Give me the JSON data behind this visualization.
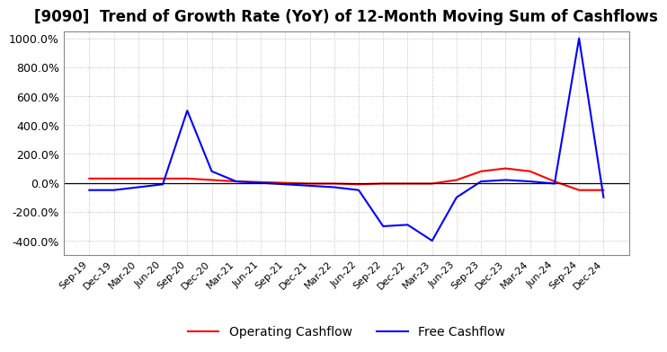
{
  "title": "[9090]  Trend of Growth Rate (YoY) of 12-Month Moving Sum of Cashflows",
  "title_fontsize": 12,
  "ylim": [
    -500,
    1050
  ],
  "yticks": [
    -400,
    -200,
    0,
    200,
    400,
    600,
    800,
    1000
  ],
  "yticklabels": [
    "-400.0%",
    "-200.0%",
    "0.0%",
    "200.0%",
    "400.0%",
    "600.0%",
    "800.0%",
    "1000.0%"
  ],
  "background_color": "#ffffff",
  "grid_color": "#b0b0b0",
  "legend_labels": [
    "Operating Cashflow",
    "Free Cashflow"
  ],
  "legend_colors": [
    "red",
    "blue"
  ],
  "x_labels": [
    "Sep-19",
    "Dec-19",
    "Mar-20",
    "Jun-20",
    "Sep-20",
    "Dec-20",
    "Mar-21",
    "Jun-21",
    "Sep-21",
    "Dec-21",
    "Mar-22",
    "Jun-22",
    "Sep-22",
    "Dec-22",
    "Mar-23",
    "Jun-23",
    "Sep-23",
    "Dec-23",
    "Mar-24",
    "Jun-24",
    "Sep-24",
    "Dec-24"
  ],
  "operating_cashflow": [
    30,
    30,
    30,
    30,
    30,
    20,
    10,
    5,
    0,
    -5,
    -5,
    -10,
    -5,
    -5,
    -5,
    20,
    80,
    100,
    80,
    10,
    -50,
    -50
  ],
  "free_cashflow": [
    -50,
    -50,
    -30,
    -10,
    500,
    80,
    10,
    0,
    -10,
    -20,
    -30,
    -50,
    -300,
    -290,
    -400,
    -100,
    10,
    20,
    10,
    -5,
    1000,
    -100
  ]
}
